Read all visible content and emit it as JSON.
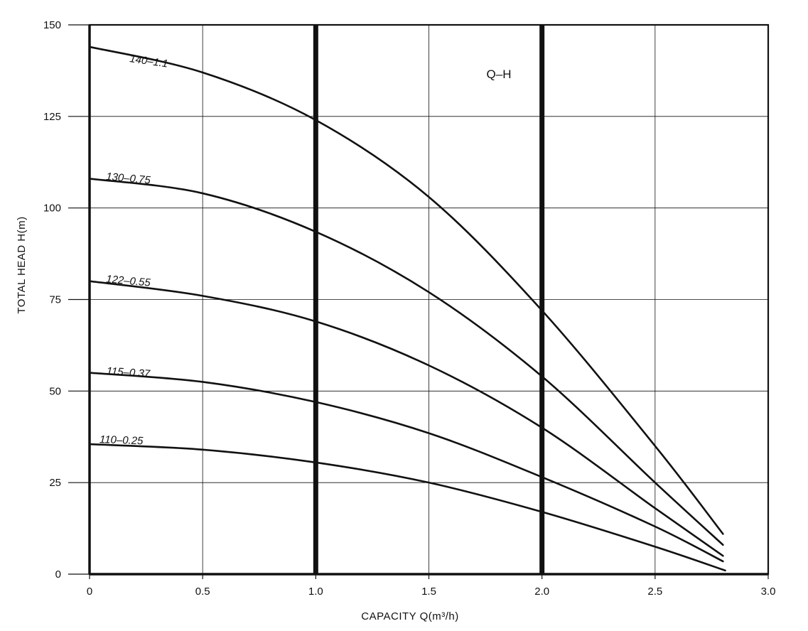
{
  "chart_data": {
    "type": "line",
    "title": "",
    "annotation": "Q–H",
    "xlabel": "CAPACITY  Q(m³/h)",
    "ylabel": "TOTAL HEAD  H(m)",
    "xlim": [
      0,
      3.0
    ],
    "ylim": [
      0,
      150
    ],
    "xticks": [
      0,
      0.5,
      1.0,
      1.5,
      2.0,
      2.5,
      3.0
    ],
    "xtick_labels": [
      "0",
      "0.5",
      "1.0",
      "1.5",
      "2.0",
      "2.5",
      "3.0"
    ],
    "yticks": [
      0,
      25,
      50,
      75,
      100,
      125,
      150
    ],
    "ytick_labels": [
      "0",
      "25",
      "50",
      "75",
      "100",
      "125",
      "150"
    ],
    "grid": true,
    "emphasized_x_gridlines": [
      1.0,
      2.0
    ],
    "series": [
      {
        "name": "140–1.1",
        "x": [
          0,
          0.5,
          1.0,
          1.5,
          2.0,
          2.5,
          2.8
        ],
        "y": [
          144,
          137,
          124,
          103,
          72,
          35,
          11
        ]
      },
      {
        "name": "130–0.75",
        "x": [
          0,
          0.5,
          1.0,
          1.5,
          2.0,
          2.5,
          2.8
        ],
        "y": [
          108,
          104,
          93.5,
          77,
          54,
          25,
          8
        ]
      },
      {
        "name": "122–0.55",
        "x": [
          0,
          0.5,
          1.0,
          1.5,
          2.0,
          2.5,
          2.8
        ],
        "y": [
          80,
          76,
          69,
          57,
          40,
          18,
          5
        ]
      },
      {
        "name": "115–0.37",
        "x": [
          0,
          0.5,
          1.0,
          1.5,
          2.0,
          2.5,
          2.8
        ],
        "y": [
          55,
          52.5,
          47,
          38.5,
          26.5,
          13,
          3.5
        ]
      },
      {
        "name": "110–0.25",
        "x": [
          0,
          0.5,
          1.0,
          1.5,
          2.0,
          2.5,
          2.81
        ],
        "y": [
          35.5,
          34,
          30.5,
          25,
          17,
          7.5,
          1
        ]
      }
    ]
  }
}
